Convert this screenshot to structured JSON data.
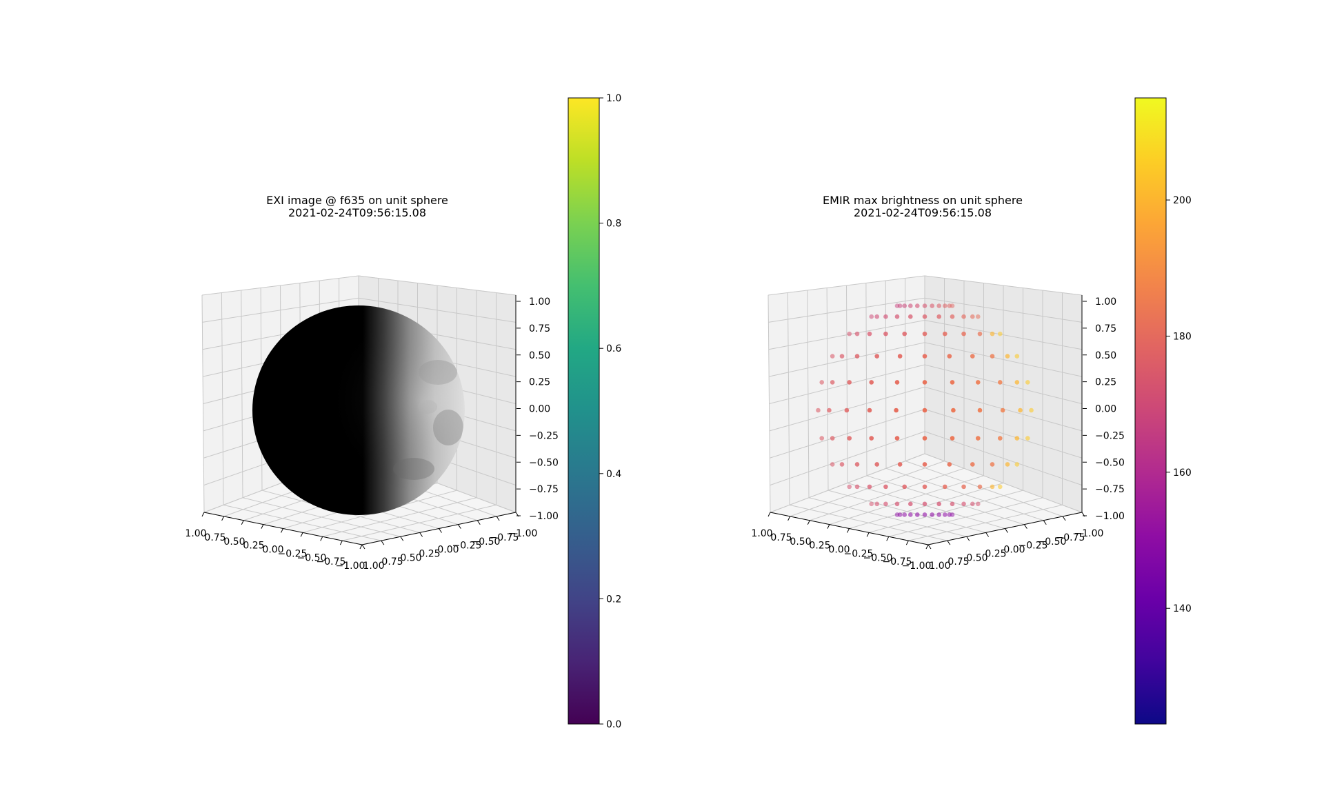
{
  "chart_data": [
    {
      "type": "scatter",
      "title_line1": "EXI image @ f635 on unit sphere",
      "title_line2": "2021-02-24T09:56:15.08",
      "description_of_marks": "",
      "xlim": [
        -1.0,
        1.0
      ],
      "ylim": [
        -1.0,
        1.0
      ],
      "zlim": [
        -1.0,
        1.0
      ],
      "xticks": [
        "1.00",
        "0.75",
        "0.50",
        "0.25",
        "0.00",
        "−0.25",
        "−0.50",
        "−0.75",
        "−1.00"
      ],
      "yticks": [
        "1.00",
        "0.75",
        "0.50",
        "0.25",
        "0.00",
        "−0.25",
        "−0.50",
        "−0.75",
        "−1.00"
      ],
      "zticks": [
        "1.00",
        "0.75",
        "0.50",
        "0.25",
        "0.00",
        "−0.25",
        "−0.50",
        "−0.75",
        "−1.00"
      ],
      "colorbar": {
        "cmap": "viridis",
        "range": [
          0.0,
          1.0
        ],
        "ticks": [
          "0.0",
          "0.2",
          "0.4",
          "0.6",
          "0.8",
          "1.0"
        ],
        "tick_values": [
          0.0,
          0.2,
          0.4,
          0.6,
          0.8,
          1.0
        ]
      },
      "surface_cmap": "gray",
      "grid": true
    },
    {
      "type": "scatter",
      "title_line1": "EMIR max brightness on unit sphere",
      "title_line2": "2021-02-24T09:56:15.08",
      "xlim": [
        -1.0,
        1.0
      ],
      "ylim": [
        -1.0,
        1.0
      ],
      "zlim": [
        -1.0,
        1.0
      ],
      "xticks": [
        "1.00",
        "0.75",
        "0.50",
        "0.25",
        "0.00",
        "−0.25",
        "−0.50",
        "−0.75",
        "−1.00"
      ],
      "yticks": [
        "1.00",
        "0.75",
        "0.50",
        "0.25",
        "0.00",
        "−0.25",
        "−0.50",
        "−0.75",
        "−1.00"
      ],
      "zticks": [
        "1.00",
        "0.75",
        "0.50",
        "0.25",
        "0.00",
        "−0.25",
        "−0.50",
        "−0.75",
        "−1.00"
      ],
      "colorbar": {
        "cmap": "plasma",
        "range": [
          123,
          215
        ],
        "ticks": [
          "140",
          "160",
          "180",
          "200"
        ],
        "tick_values": [
          140,
          160,
          180,
          200
        ]
      },
      "grid": true,
      "points_note": "approximate brightness values on a lat/lon grid of the visible hemisphere"
    }
  ]
}
